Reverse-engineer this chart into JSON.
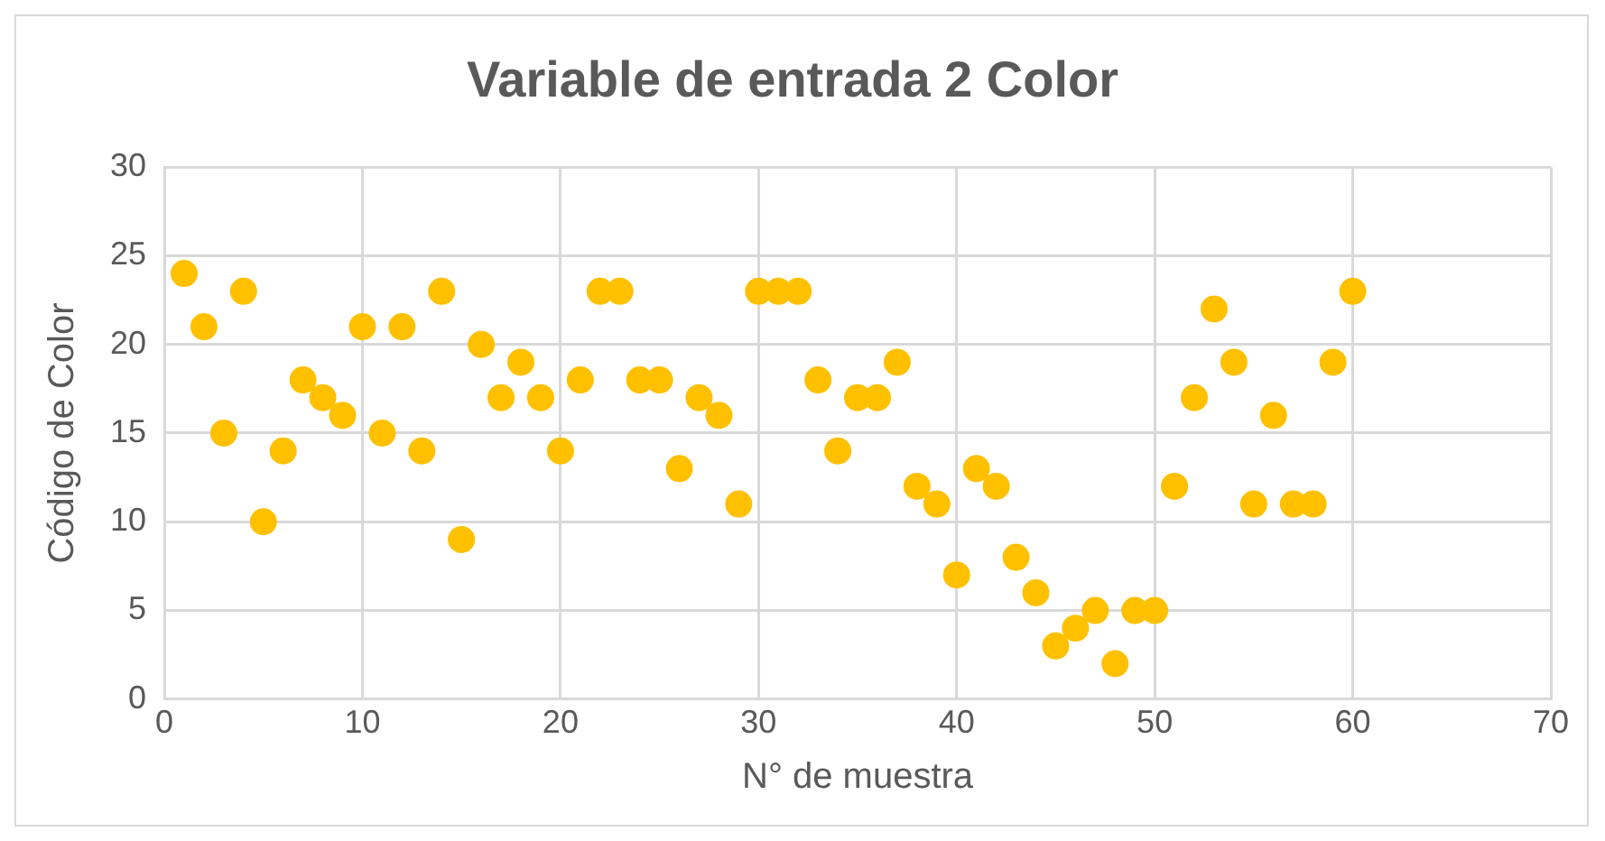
{
  "chart_data": {
    "type": "scatter",
    "title": "Variable de entrada 2 Color",
    "xlabel": "N° de muestra",
    "ylabel": "Código de Color",
    "x": [
      1,
      2,
      3,
      4,
      5,
      6,
      7,
      8,
      9,
      10,
      11,
      12,
      13,
      14,
      15,
      16,
      17,
      18,
      19,
      20,
      21,
      22,
      23,
      24,
      25,
      26,
      27,
      28,
      29,
      30,
      31,
      32,
      33,
      34,
      35,
      36,
      37,
      38,
      39,
      40,
      41,
      42,
      43,
      44,
      45,
      46,
      47,
      48,
      49,
      50,
      51,
      52,
      53,
      54,
      55,
      56,
      57,
      58,
      59,
      60
    ],
    "series": [
      {
        "color": "#ffc000",
        "values": [
          24,
          21,
          15,
          23,
          10,
          14,
          18,
          17,
          16,
          21,
          15,
          21,
          14,
          23,
          9,
          20,
          17,
          19,
          17,
          14,
          18,
          23,
          23,
          18,
          18,
          13,
          17,
          16,
          11,
          23,
          23,
          23,
          18,
          14,
          17,
          17,
          19,
          12,
          11,
          7,
          13,
          12,
          8,
          6,
          3,
          4,
          5,
          2,
          5,
          5,
          12,
          17,
          22,
          19,
          11,
          16,
          11,
          11,
          19,
          23
        ]
      }
    ],
    "xlim": [
      0,
      70
    ],
    "xticks": [
      0,
      10,
      20,
      30,
      40,
      50,
      60,
      70
    ],
    "ylim": [
      0,
      30
    ],
    "yticks": [
      0,
      5,
      10,
      15,
      20,
      25,
      30
    ],
    "grid": true,
    "marker": "circle"
  }
}
